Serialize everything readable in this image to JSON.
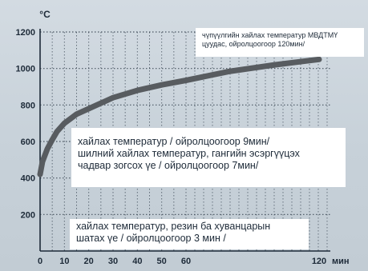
{
  "chart_data": {
    "type": "line",
    "title": "",
    "xlabel": "",
    "ylabel": "",
    "unit_y": "°C",
    "unit_x": "мин",
    "y_ticks": [
      200,
      400,
      600,
      800,
      1000,
      1200
    ],
    "x_tick_labels": [
      "0",
      "10",
      "20",
      "30",
      "40",
      "50",
      "60",
      "120"
    ],
    "ylim": [
      0,
      1200
    ],
    "grid": true,
    "series": [
      {
        "x": [
          0,
          1,
          3,
          5,
          7,
          10,
          15,
          20,
          30,
          40,
          50,
          60,
          80,
          100,
          120
        ],
        "y": [
          420,
          490,
          560,
          610,
          655,
          700,
          750,
          780,
          840,
          880,
          910,
          935,
          985,
          1020,
          1050
        ]
      }
    ],
    "annotations": {
      "top": {
        "line1": "чүпүүлгийн хайлах температур МВДТМҮ",
        "line2": "цуудас, ойролцоогоор 120мин/"
      },
      "middle": {
        "line1": "хайлах температур / ойролцоогоор  9мин/",
        "line2": "шилний хайлах температур, гангийн эсэргүүцэх",
        "line3": "чадвар зогсох үе / ойролцоогоор 7мин/"
      },
      "bottom": {
        "line1": "хайлах температур, резин ба хуванцарын",
        "line2": "шатах үе / ойролцоогоор 3 мин /"
      }
    },
    "colors": {
      "curve": "#585c60",
      "axis": "#1d2a38",
      "grid": "#1d2a38"
    }
  }
}
